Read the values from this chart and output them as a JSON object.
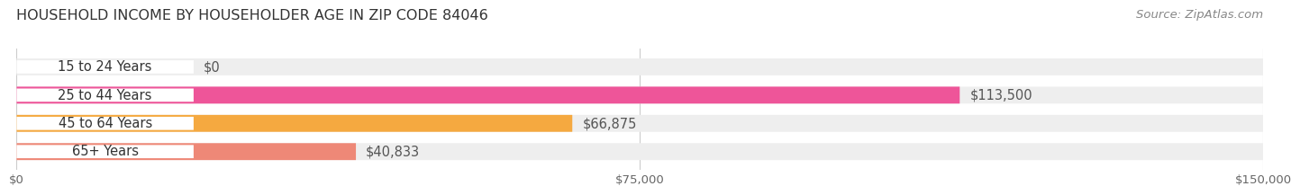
{
  "title": "HOUSEHOLD INCOME BY HOUSEHOLDER AGE IN ZIP CODE 84046",
  "source": "Source: ZipAtlas.com",
  "categories": [
    "15 to 24 Years",
    "25 to 44 Years",
    "45 to 64 Years",
    "65+ Years"
  ],
  "values": [
    0,
    113500,
    66875,
    40833
  ],
  "value_labels": [
    "$0",
    "$113,500",
    "$66,875",
    "$40,833"
  ],
  "bar_colors": [
    "#9999cc",
    "#ee5599",
    "#f5a940",
    "#ee8877"
  ],
  "bar_bg_color": "#eeeeee",
  "background_color": "#ffffff",
  "xmax": 150000,
  "xticks": [
    0,
    75000,
    150000
  ],
  "xtick_labels": [
    "$0",
    "$75,000",
    "$150,000"
  ],
  "label_bg_color": "#ffffff",
  "label_fontsize": 10.5,
  "title_fontsize": 11.5,
  "source_fontsize": 9.5
}
